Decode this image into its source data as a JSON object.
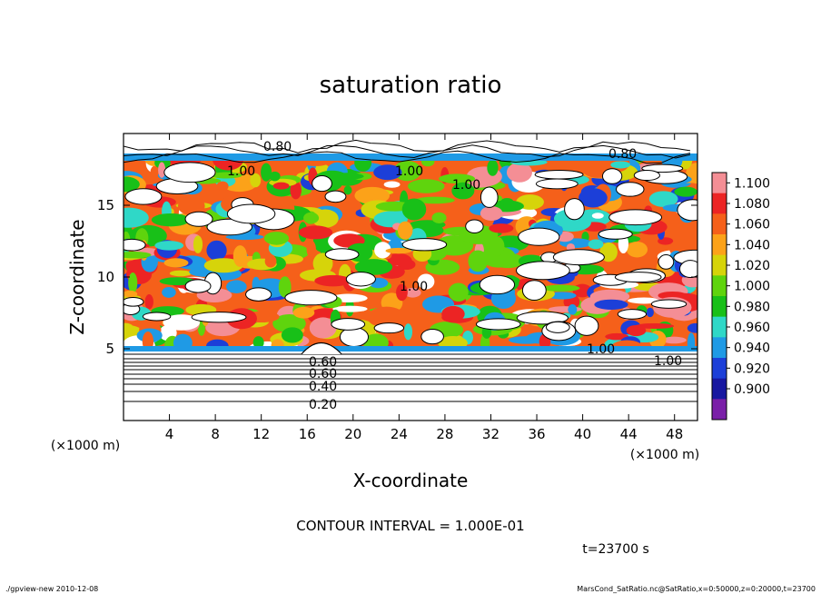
{
  "chart_data": {
    "type": "heatmap",
    "title": "saturation ratio",
    "xlabel": "X-coordinate",
    "ylabel": "Z-coordinate",
    "x_unit_left": "(×1000 m)",
    "x_unit_right": "(×1000 m)",
    "xlim": [
      0,
      50
    ],
    "ylim": [
      0,
      20
    ],
    "x_ticks": [
      4,
      8,
      12,
      16,
      20,
      24,
      28,
      32,
      36,
      40,
      44,
      48
    ],
    "y_ticks": [
      5,
      10,
      15
    ],
    "colorbar": {
      "levels": [
        "1.100",
        "1.080",
        "1.060",
        "1.040",
        "1.020",
        "1.000",
        "0.980",
        "0.960",
        "0.940",
        "0.920",
        "0.900"
      ],
      "colors": [
        "#f48e95",
        "#ec2424",
        "#f5601a",
        "#fca219",
        "#d6d40a",
        "#5fd40d",
        "#18c018",
        "#2fd8c7",
        "#1f9ae5",
        "#1c3fd8",
        "#1717a0",
        "#7a1fa8"
      ]
    },
    "contour_labels_lower": [
      "0.60",
      "0.60",
      "0.40",
      "0.20"
    ],
    "contour_labels_upper": [
      "0.80",
      "0.80",
      "1.00",
      "1.00",
      "1.00",
      "1.00",
      "1.00",
      "1.00"
    ],
    "contour_interval_text": "CONTOUR INTERVAL = 1.000E-01",
    "time_text": "t=23700 s",
    "footer_left": "./gpview-new 2010-12-08",
    "footer_right": "MarsCond_SatRatio.nc@SatRatio,x=0:50000,z=0:20000,t=23700"
  }
}
